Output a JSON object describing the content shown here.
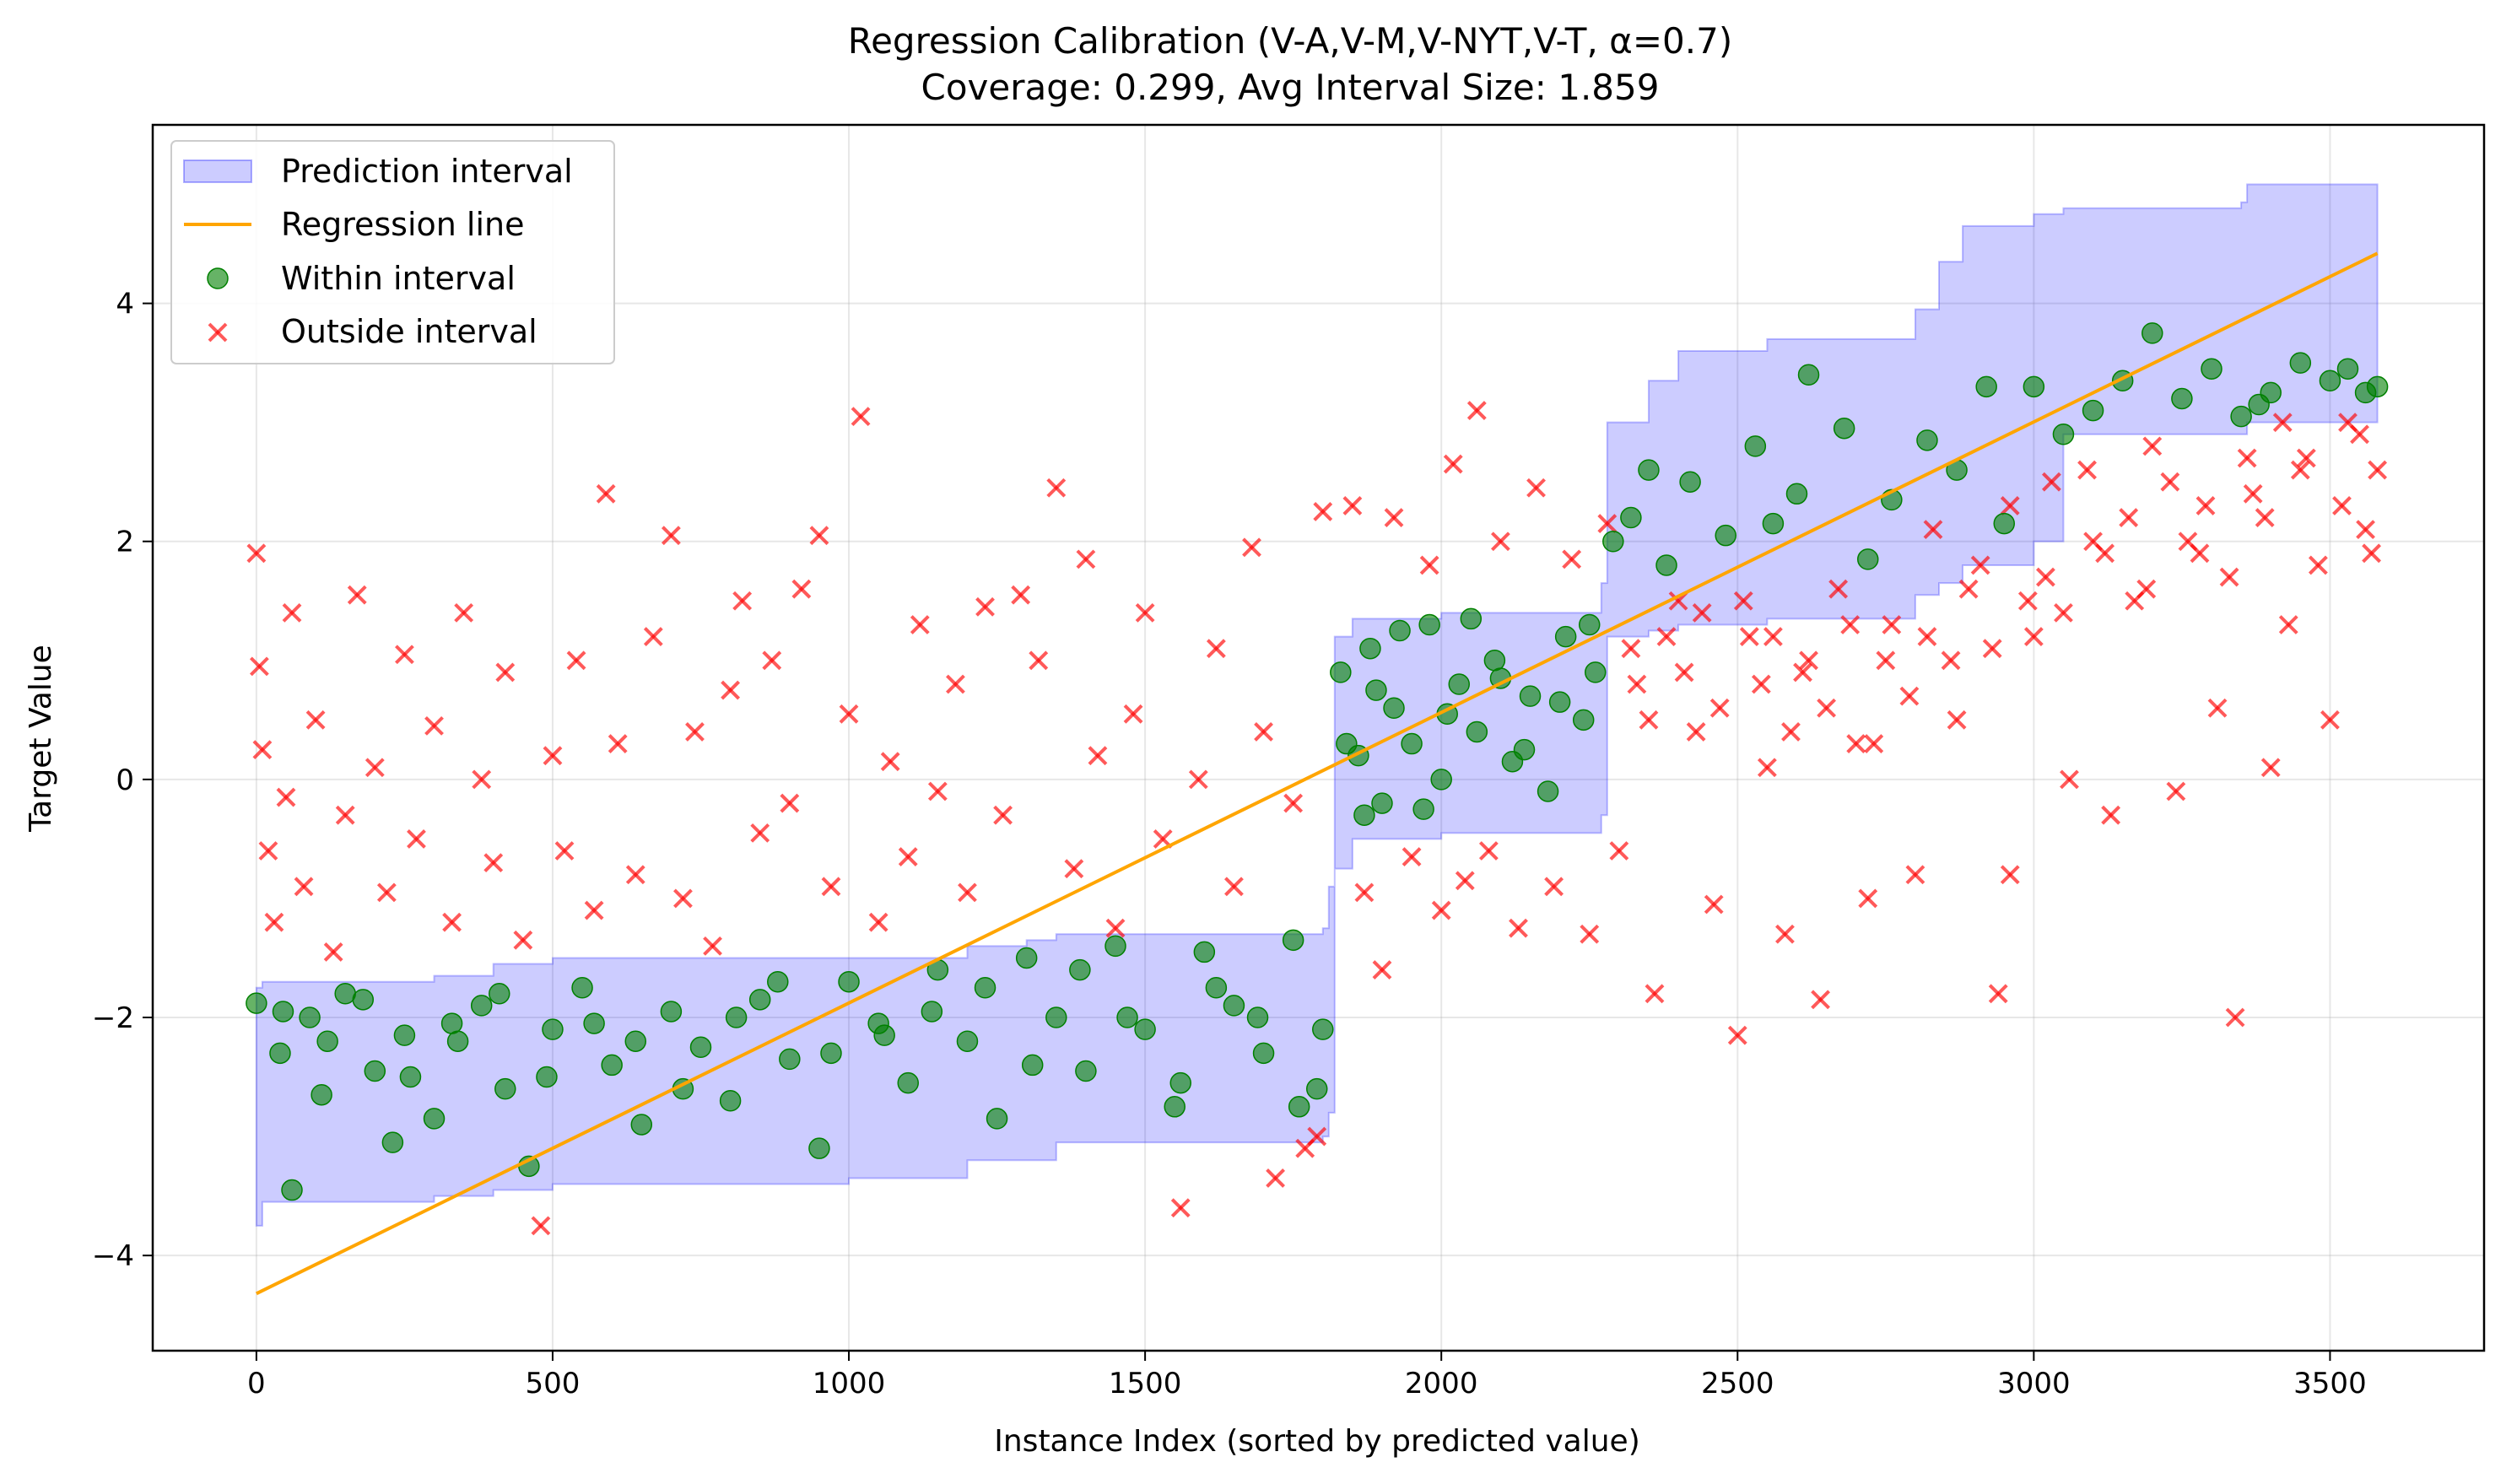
{
  "chart_data": {
    "type": "scatter",
    "title_line1": "Regression Calibration (V-A,V-M,V-NYT,V-T, α=0.7)",
    "title_line2": "Coverage: 0.299, Avg Interval Size: 1.859",
    "xlabel": "Instance Index (sorted by predicted value)",
    "ylabel": "Target Value",
    "xlim": [
      -175,
      3760
    ],
    "ylim": [
      -4.8,
      5.5
    ],
    "x_ticks": [
      {
        "value": 0,
        "label": "0"
      },
      {
        "value": 500,
        "label": "500"
      },
      {
        "value": 1000,
        "label": "1000"
      },
      {
        "value": 1500,
        "label": "1500"
      },
      {
        "value": 2000,
        "label": "2000"
      },
      {
        "value": 2500,
        "label": "2500"
      },
      {
        "value": 3000,
        "label": "3000"
      },
      {
        "value": 3500,
        "label": "3500"
      }
    ],
    "y_ticks": [
      {
        "value": -4,
        "label": "−4"
      },
      {
        "value": -2,
        "label": "−2"
      },
      {
        "value": 0,
        "label": "0"
      },
      {
        "value": 2,
        "label": "2"
      },
      {
        "value": 4,
        "label": "4"
      }
    ],
    "grid": true,
    "legend_position": "top-left",
    "legend": {
      "interval": "Prediction interval",
      "regression": "Regression line",
      "within": "Within interval",
      "outside": "Outside interval"
    },
    "colors": {
      "interval_fill": "#0000ff",
      "interval_edge": "#0000ff",
      "regression": "#ffa500",
      "within": "#008000",
      "outside": "#ff0000"
    },
    "regression_line": {
      "x": [
        0,
        3580
      ],
      "y": [
        -4.32,
        4.42
      ]
    },
    "interval_band": [
      {
        "x": 0,
        "lower": -3.75,
        "upper": -1.75
      },
      {
        "x": 10,
        "lower": -3.55,
        "upper": -1.7
      },
      {
        "x": 300,
        "lower": -3.5,
        "upper": -1.65
      },
      {
        "x": 400,
        "lower": -3.45,
        "upper": -1.55
      },
      {
        "x": 500,
        "lower": -3.4,
        "upper": -1.5
      },
      {
        "x": 1000,
        "lower": -3.35,
        "upper": -1.5
      },
      {
        "x": 1200,
        "lower": -3.2,
        "upper": -1.4
      },
      {
        "x": 1300,
        "lower": -3.2,
        "upper": -1.35
      },
      {
        "x": 1350,
        "lower": -3.05,
        "upper": -1.3
      },
      {
        "x": 1800,
        "lower": -3.0,
        "upper": -1.25
      },
      {
        "x": 1810,
        "lower": -2.8,
        "upper": -0.9
      },
      {
        "x": 1820,
        "lower": -0.75,
        "upper": 1.2
      },
      {
        "x": 1850,
        "lower": -0.5,
        "upper": 1.35
      },
      {
        "x": 2000,
        "lower": -0.45,
        "upper": 1.4
      },
      {
        "x": 2270,
        "lower": -0.3,
        "upper": 1.65
      },
      {
        "x": 2280,
        "lower": 1.2,
        "upper": 3.0
      },
      {
        "x": 2350,
        "lower": 1.25,
        "upper": 3.35
      },
      {
        "x": 2400,
        "lower": 1.3,
        "upper": 3.6
      },
      {
        "x": 2550,
        "lower": 1.35,
        "upper": 3.7
      },
      {
        "x": 2800,
        "lower": 1.45,
        "upper": 3.8
      },
      {
        "x": 2800,
        "lower": 1.55,
        "upper": 3.95
      },
      {
        "x": 2840,
        "lower": 1.65,
        "upper": 4.35
      },
      {
        "x": 2880,
        "lower": 1.8,
        "upper": 4.65
      },
      {
        "x": 3000,
        "lower": 2.0,
        "upper": 4.75
      },
      {
        "x": 3050,
        "lower": 2.9,
        "upper": 4.8
      },
      {
        "x": 3350,
        "lower": 2.9,
        "upper": 4.85
      },
      {
        "x": 3360,
        "lower": 3.0,
        "upper": 5.0
      },
      {
        "x": 3580,
        "lower": 3.0,
        "upper": 5.0
      }
    ],
    "within_points": [
      [
        0,
        -1.88
      ],
      [
        40,
        -2.3
      ],
      [
        60,
        -3.45
      ],
      [
        90,
        -2.0
      ],
      [
        120,
        -2.2
      ],
      [
        150,
        -1.8
      ],
      [
        200,
        -2.45
      ],
      [
        230,
        -3.05
      ],
      [
        260,
        -2.5
      ],
      [
        300,
        -2.85
      ],
      [
        340,
        -2.2
      ],
      [
        380,
        -1.9
      ],
      [
        420,
        -2.6
      ],
      [
        460,
        -3.25
      ],
      [
        500,
        -2.1
      ],
      [
        550,
        -1.75
      ],
      [
        600,
        -2.4
      ],
      [
        650,
        -2.9
      ],
      [
        700,
        -1.95
      ],
      [
        750,
        -2.25
      ],
      [
        800,
        -2.7
      ],
      [
        850,
        -1.85
      ],
      [
        900,
        -2.35
      ],
      [
        950,
        -3.1
      ],
      [
        1000,
        -1.7
      ],
      [
        1050,
        -2.05
      ],
      [
        1100,
        -2.55
      ],
      [
        1150,
        -1.6
      ],
      [
        1200,
        -2.2
      ],
      [
        1250,
        -2.85
      ],
      [
        1300,
        -1.5
      ],
      [
        1350,
        -2.0
      ],
      [
        1400,
        -2.45
      ],
      [
        1450,
        -1.4
      ],
      [
        1500,
        -2.1
      ],
      [
        1550,
        -2.75
      ],
      [
        1600,
        -1.45
      ],
      [
        1650,
        -1.9
      ],
      [
        1700,
        -2.3
      ],
      [
        1750,
        -1.35
      ],
      [
        1790,
        -2.6
      ],
      [
        1800,
        -2.1
      ],
      [
        45,
        -1.95
      ],
      [
        110,
        -2.65
      ],
      [
        180,
        -1.85
      ],
      [
        250,
        -2.15
      ],
      [
        330,
        -2.05
      ],
      [
        410,
        -1.8
      ],
      [
        490,
        -2.5
      ],
      [
        570,
        -2.05
      ],
      [
        640,
        -2.2
      ],
      [
        720,
        -2.6
      ],
      [
        810,
        -2.0
      ],
      [
        880,
        -1.7
      ],
      [
        970,
        -2.3
      ],
      [
        1060,
        -2.15
      ],
      [
        1140,
        -1.95
      ],
      [
        1230,
        -1.75
      ],
      [
        1310,
        -2.4
      ],
      [
        1390,
        -1.6
      ],
      [
        1470,
        -2.0
      ],
      [
        1560,
        -2.55
      ],
      [
        1620,
        -1.75
      ],
      [
        1690,
        -2.0
      ],
      [
        1760,
        -2.75
      ],
      [
        1830,
        0.9
      ],
      [
        1860,
        0.2
      ],
      [
        1880,
        1.1
      ],
      [
        1900,
        -0.2
      ],
      [
        1920,
        0.6
      ],
      [
        1950,
        0.3
      ],
      [
        1980,
        1.3
      ],
      [
        2000,
        0.0
      ],
      [
        2030,
        0.8
      ],
      [
        2060,
        0.4
      ],
      [
        2090,
        1.0
      ],
      [
        2120,
        0.15
      ],
      [
        2150,
        0.7
      ],
      [
        2180,
        -0.1
      ],
      [
        2210,
        1.2
      ],
      [
        2240,
        0.5
      ],
      [
        2260,
        0.9
      ],
      [
        1840,
        0.3
      ],
      [
        1870,
        -0.3
      ],
      [
        1890,
        0.75
      ],
      [
        1930,
        1.25
      ],
      [
        1970,
        -0.25
      ],
      [
        2010,
        0.55
      ],
      [
        2050,
        1.35
      ],
      [
        2100,
        0.85
      ],
      [
        2140,
        0.25
      ],
      [
        2200,
        0.65
      ],
      [
        2250,
        1.3
      ],
      [
        2290,
        2.0
      ],
      [
        2320,
        2.2
      ],
      [
        2350,
        2.6
      ],
      [
        2380,
        1.8
      ],
      [
        2420,
        2.5
      ],
      [
        2480,
        2.05
      ],
      [
        2530,
        2.8
      ],
      [
        2560,
        2.15
      ],
      [
        2600,
        2.4
      ],
      [
        2620,
        3.4
      ],
      [
        2680,
        2.95
      ],
      [
        2720,
        1.85
      ],
      [
        2760,
        2.35
      ],
      [
        2820,
        2.85
      ],
      [
        2870,
        2.6
      ],
      [
        2920,
        3.3
      ],
      [
        2950,
        2.15
      ],
      [
        3000,
        3.3
      ],
      [
        3050,
        2.9
      ],
      [
        3100,
        3.1
      ],
      [
        3150,
        3.35
      ],
      [
        3200,
        3.75
      ],
      [
        3250,
        3.2
      ],
      [
        3300,
        3.45
      ],
      [
        3350,
        3.05
      ],
      [
        3380,
        3.15
      ],
      [
        3400,
        3.25
      ],
      [
        3450,
        3.5
      ],
      [
        3500,
        3.35
      ],
      [
        3530,
        3.45
      ],
      [
        3560,
        3.25
      ],
      [
        3580,
        3.3
      ]
    ],
    "outside_points": [
      [
        0,
        1.9
      ],
      [
        5,
        0.95
      ],
      [
        10,
        0.25
      ],
      [
        20,
        -0.6
      ],
      [
        30,
        -1.2
      ],
      [
        50,
        -0.15
      ],
      [
        60,
        1.4
      ],
      [
        80,
        -0.9
      ],
      [
        100,
        0.5
      ],
      [
        130,
        -1.45
      ],
      [
        150,
        -0.3
      ],
      [
        170,
        1.55
      ],
      [
        200,
        0.1
      ],
      [
        220,
        -0.95
      ],
      [
        250,
        1.05
      ],
      [
        270,
        -0.5
      ],
      [
        300,
        0.45
      ],
      [
        330,
        -1.2
      ],
      [
        350,
        1.4
      ],
      [
        380,
        0.0
      ],
      [
        400,
        -0.7
      ],
      [
        420,
        0.9
      ],
      [
        450,
        -1.35
      ],
      [
        480,
        -3.75
      ],
      [
        500,
        0.2
      ],
      [
        520,
        -0.6
      ],
      [
        540,
        1.0
      ],
      [
        570,
        -1.1
      ],
      [
        590,
        2.4
      ],
      [
        610,
        0.3
      ],
      [
        640,
        -0.8
      ],
      [
        670,
        1.2
      ],
      [
        700,
        2.05
      ],
      [
        720,
        -1.0
      ],
      [
        740,
        0.4
      ],
      [
        770,
        -1.4
      ],
      [
        800,
        0.75
      ],
      [
        820,
        1.5
      ],
      [
        850,
        -0.45
      ],
      [
        870,
        1.0
      ],
      [
        900,
        -0.2
      ],
      [
        920,
        1.6
      ],
      [
        950,
        2.05
      ],
      [
        970,
        -0.9
      ],
      [
        1000,
        0.55
      ],
      [
        1020,
        3.05
      ],
      [
        1050,
        -1.2
      ],
      [
        1070,
        0.15
      ],
      [
        1100,
        -0.65
      ],
      [
        1120,
        1.3
      ],
      [
        1150,
        -0.1
      ],
      [
        1180,
        0.8
      ],
      [
        1200,
        -0.95
      ],
      [
        1230,
        1.45
      ],
      [
        1260,
        -0.3
      ],
      [
        1290,
        1.55
      ],
      [
        1320,
        1.0
      ],
      [
        1350,
        2.45
      ],
      [
        1380,
        -0.75
      ],
      [
        1400,
        1.85
      ],
      [
        1420,
        0.2
      ],
      [
        1450,
        -1.25
      ],
      [
        1480,
        0.55
      ],
      [
        1500,
        1.4
      ],
      [
        1530,
        -0.5
      ],
      [
        1560,
        -3.6
      ],
      [
        1590,
        0.0
      ],
      [
        1620,
        1.1
      ],
      [
        1650,
        -0.9
      ],
      [
        1680,
        1.95
      ],
      [
        1700,
        0.4
      ],
      [
        1720,
        -3.35
      ],
      [
        1750,
        -0.2
      ],
      [
        1770,
        -3.1
      ],
      [
        1790,
        -3.0
      ],
      [
        1800,
        2.25
      ],
      [
        1850,
        2.3
      ],
      [
        1870,
        -0.95
      ],
      [
        1900,
        -1.6
      ],
      [
        1920,
        2.2
      ],
      [
        1950,
        -0.65
      ],
      [
        1980,
        1.8
      ],
      [
        2000,
        -1.1
      ],
      [
        2020,
        2.65
      ],
      [
        2040,
        -0.85
      ],
      [
        2060,
        3.1
      ],
      [
        2080,
        -0.6
      ],
      [
        2100,
        2.0
      ],
      [
        2130,
        -1.25
      ],
      [
        2160,
        2.45
      ],
      [
        2190,
        -0.9
      ],
      [
        2220,
        1.85
      ],
      [
        2250,
        -1.3
      ],
      [
        2280,
        2.15
      ],
      [
        2300,
        -0.6
      ],
      [
        2330,
        0.8
      ],
      [
        2360,
        -1.8
      ],
      [
        2400,
        1.5
      ],
      [
        2430,
        0.4
      ],
      [
        2460,
        -1.05
      ],
      [
        2500,
        -2.15
      ],
      [
        2520,
        1.2
      ],
      [
        2550,
        0.1
      ],
      [
        2580,
        -1.3
      ],
      [
        2610,
        0.9
      ],
      [
        2640,
        -1.85
      ],
      [
        2670,
        1.6
      ],
      [
        2700,
        0.3
      ],
      [
        2720,
        -1.0
      ],
      [
        2760,
        1.3
      ],
      [
        2800,
        -0.8
      ],
      [
        2830,
        2.1
      ],
      [
        2870,
        0.5
      ],
      [
        2910,
        1.8
      ],
      [
        2940,
        -1.8
      ],
      [
        2960,
        -0.8
      ],
      [
        3000,
        1.2
      ],
      [
        3030,
        2.5
      ],
      [
        3060,
        0.0
      ],
      [
        3100,
        2.0
      ],
      [
        3130,
        -0.3
      ],
      [
        3170,
        1.5
      ],
      [
        3200,
        2.8
      ],
      [
        3240,
        -0.1
      ],
      [
        3280,
        1.9
      ],
      [
        3310,
        0.6
      ],
      [
        3340,
        -2.0
      ],
      [
        3370,
        2.4
      ],
      [
        3400,
        0.1
      ],
      [
        3430,
        1.3
      ],
      [
        3460,
        2.7
      ],
      [
        3500,
        0.5
      ],
      [
        3530,
        3.0
      ],
      [
        3560,
        2.1
      ],
      [
        3580,
        2.6
      ],
      [
        3570,
        1.9
      ],
      [
        3550,
        2.9
      ],
      [
        3520,
        2.3
      ],
      [
        3480,
        1.8
      ],
      [
        3450,
        2.6
      ],
      [
        3420,
        3.0
      ],
      [
        3390,
        2.2
      ],
      [
        3360,
        2.7
      ],
      [
        3330,
        1.7
      ],
      [
        3290,
        2.3
      ],
      [
        3260,
        2.0
      ],
      [
        3230,
        2.5
      ],
      [
        3190,
        1.6
      ],
      [
        3160,
        2.2
      ],
      [
        3120,
        1.9
      ],
      [
        3090,
        2.6
      ],
      [
        3050,
        1.4
      ],
      [
        3020,
        1.7
      ],
      [
        2990,
        1.5
      ],
      [
        2960,
        2.3
      ],
      [
        2930,
        1.1
      ],
      [
        2890,
        1.6
      ],
      [
        2860,
        1.0
      ],
      [
        2820,
        1.2
      ],
      [
        2790,
        0.7
      ],
      [
        2750,
        1.0
      ],
      [
        2730,
        0.3
      ],
      [
        2690,
        1.3
      ],
      [
        2650,
        0.6
      ],
      [
        2620,
        1.0
      ],
      [
        2590,
        0.4
      ],
      [
        2560,
        1.2
      ],
      [
        2540,
        0.8
      ],
      [
        2510,
        1.5
      ],
      [
        2470,
        0.6
      ],
      [
        2440,
        1.4
      ],
      [
        2410,
        0.9
      ],
      [
        2380,
        1.2
      ],
      [
        2350,
        0.5
      ],
      [
        2320,
        1.1
      ]
    ]
  }
}
